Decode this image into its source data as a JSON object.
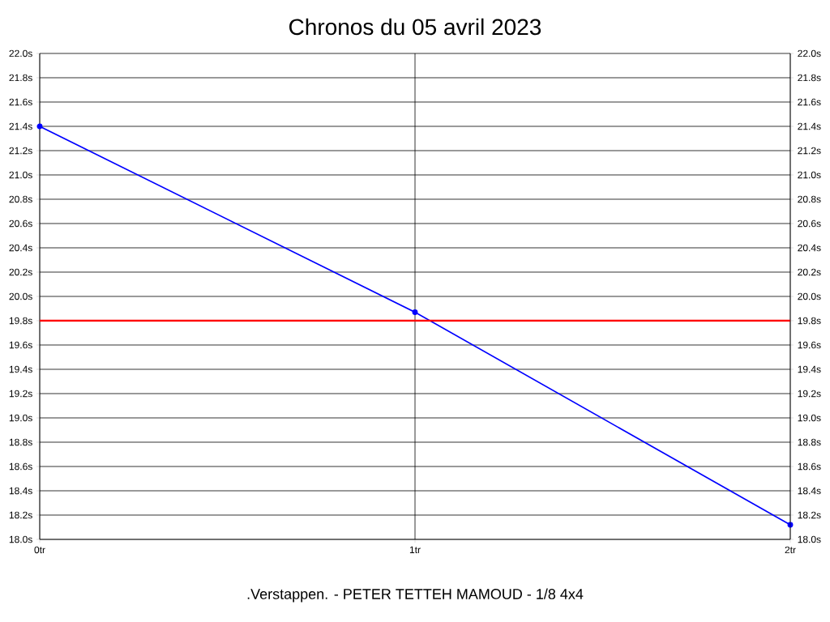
{
  "chart_data": {
    "type": "line",
    "title": "Chronos du 05 avril 2023",
    "x": [
      0,
      1,
      2
    ],
    "series": [
      {
        "color": "#0000ff",
        "values": [
          21.4,
          19.87,
          18.12
        ]
      }
    ],
    "xlim": [
      0,
      2
    ],
    "xticks": [
      {
        "value": 0,
        "label": "0tr"
      },
      {
        "value": 1,
        "label": "1tr"
      },
      {
        "value": 2,
        "label": "2tr"
      }
    ],
    "ylim": [
      18.0,
      22.0
    ],
    "yticks": [
      {
        "value": 18.0,
        "label": "18.0s"
      },
      {
        "value": 18.2,
        "label": "18.2s"
      },
      {
        "value": 18.4,
        "label": "18.4s"
      },
      {
        "value": 18.6,
        "label": "18.6s"
      },
      {
        "value": 18.8,
        "label": "18.8s"
      },
      {
        "value": 19.0,
        "label": "19.0s"
      },
      {
        "value": 19.2,
        "label": "19.2s"
      },
      {
        "value": 19.4,
        "label": "19.4s"
      },
      {
        "value": 19.6,
        "label": "19.6s"
      },
      {
        "value": 19.8,
        "label": "19.8s"
      },
      {
        "value": 20.0,
        "label": "20.0s"
      },
      {
        "value": 20.2,
        "label": "20.2s"
      },
      {
        "value": 20.4,
        "label": "20.4s"
      },
      {
        "value": 20.6,
        "label": "20.6s"
      },
      {
        "value": 20.8,
        "label": "20.8s"
      },
      {
        "value": 21.0,
        "label": "21.0s"
      },
      {
        "value": 21.2,
        "label": "21.2s"
      },
      {
        "value": 21.4,
        "label": "21.4s"
      },
      {
        "value": 21.6,
        "label": "21.6s"
      },
      {
        "value": 21.8,
        "label": "21.8s"
      },
      {
        "value": 22.0,
        "label": "22.0s"
      }
    ],
    "y2lim": [
      18.0,
      22.0
    ],
    "y2ticks": [
      {
        "value": 18.0,
        "label": "18.0s"
      },
      {
        "value": 18.2,
        "label": "18.2s"
      },
      {
        "value": 18.4,
        "label": "18.4s"
      },
      {
        "value": 18.6,
        "label": "18.6s"
      },
      {
        "value": 18.8,
        "label": "18.8s"
      },
      {
        "value": 19.0,
        "label": "19.0s"
      },
      {
        "value": 19.2,
        "label": "19.2s"
      },
      {
        "value": 19.4,
        "label": "19.4s"
      },
      {
        "value": 19.6,
        "label": "19.6s"
      },
      {
        "value": 19.8,
        "label": "19.8s"
      },
      {
        "value": 20.0,
        "label": "20.0s"
      },
      {
        "value": 20.2,
        "label": "20.2s"
      },
      {
        "value": 20.4,
        "label": "20.4s"
      },
      {
        "value": 20.6,
        "label": "20.6s"
      },
      {
        "value": 20.8,
        "label": "20.8s"
      },
      {
        "value": 21.0,
        "label": "21.0s"
      },
      {
        "value": 21.2,
        "label": "21.2s"
      },
      {
        "value": 21.4,
        "label": "21.4s"
      },
      {
        "value": 21.6,
        "label": "21.6s"
      },
      {
        "value": 21.8,
        "label": "21.8s"
      },
      {
        "value": 22.0,
        "label": "22.0s"
      }
    ],
    "ref_lines": [
      {
        "axis": "y",
        "value": 19.8,
        "color": "#ff0000",
        "line_style": "solid"
      }
    ],
    "grid": true,
    "marker": "circle",
    "line_style": "solid",
    "annotations": [
      ".Verstappen. - PETER TETTEH MAMOUD - 1/8 4x4"
    ]
  }
}
